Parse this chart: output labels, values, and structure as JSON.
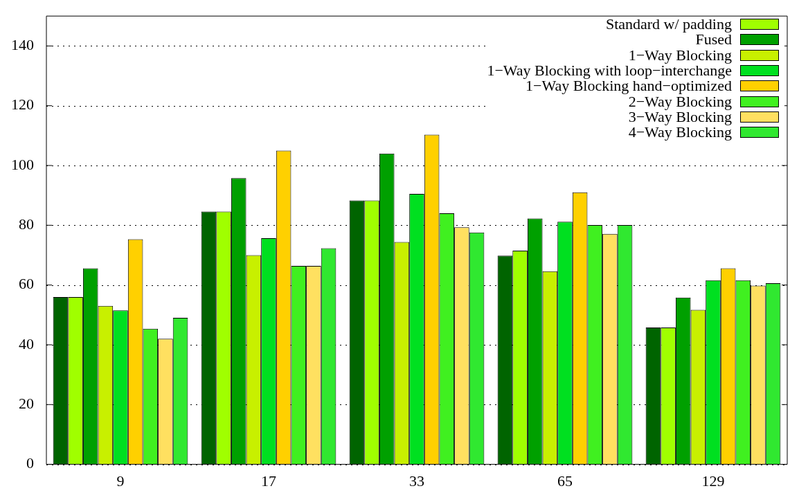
{
  "chart_data": {
    "type": "bar",
    "categories": [
      "9",
      "17",
      "33",
      "65",
      "129"
    ],
    "ylim": [
      0,
      150
    ],
    "yticks": [
      0,
      20,
      40,
      60,
      80,
      100,
      120,
      140
    ],
    "grid": "y",
    "legend": "top right",
    "series": [
      {
        "color": "#006400",
        "values": [
          56,
          84.6,
          88.3,
          69.8,
          45.8
        ]
      },
      {
        "name": "Standard w/ padding",
        "color": "#a0ff00",
        "values": [
          56,
          84.6,
          88.3,
          71.5,
          45.8
        ]
      },
      {
        "name": "Fused",
        "color": "#00a000",
        "values": [
          65.6,
          95.8,
          104,
          82.3,
          55.8
        ]
      },
      {
        "name": "1−Way Blocking",
        "color": "#c8f000",
        "values": [
          53,
          70,
          74.4,
          64.6,
          51.7
        ]
      },
      {
        "name": "1−Way Blocking with loop−interchange",
        "color": "#00e020",
        "values": [
          51.5,
          75.7,
          90.5,
          81.2,
          61.6
        ]
      },
      {
        "name": "1−Way Blocking hand−optimized",
        "color": "#ffd000",
        "values": [
          75.3,
          105,
          110.3,
          91,
          65.6
        ]
      },
      {
        "name": "2−Way Blocking",
        "color": "#40f020",
        "values": [
          45.4,
          66.4,
          84,
          80.1,
          61.6
        ]
      },
      {
        "name": "3−Way Blocking",
        "color": "#ffe060",
        "values": [
          42,
          66.4,
          79.3,
          77.1,
          59.8
        ]
      },
      {
        "name": "4−Way Blocking",
        "color": "#30e830",
        "values": [
          49,
          72.3,
          77.6,
          80.1,
          60.6
        ]
      }
    ]
  }
}
